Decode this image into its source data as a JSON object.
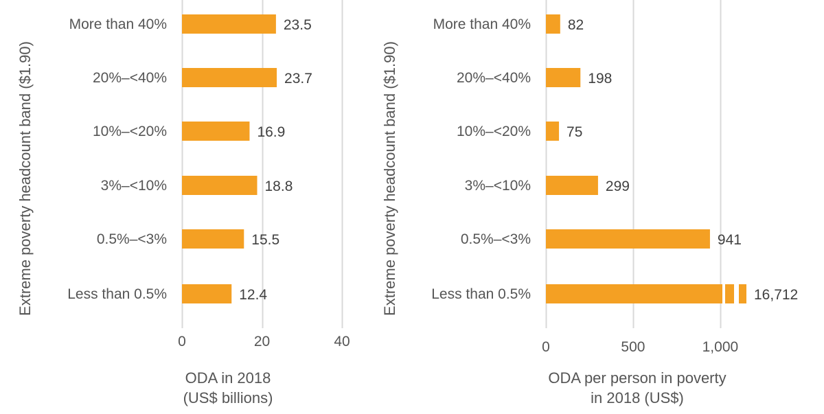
{
  "colors": {
    "bar": "#F4A023",
    "grid": "#d9d9d9",
    "text": "#555555",
    "value": "#404040"
  },
  "chart_data": [
    {
      "type": "bar",
      "orientation": "horizontal",
      "ylabel": "Extreme poverty headcount band ($1.90)",
      "xlabel_lines": [
        "ODA in 2018",
        "(US$ billions)"
      ],
      "categories": [
        "More than 40%",
        "20%–<40%",
        "10%–<20%",
        "3%–<10%",
        "0.5%–<3%",
        "Less than 0.5%"
      ],
      "values": [
        23.5,
        23.7,
        16.9,
        18.8,
        15.5,
        12.4
      ],
      "value_labels": [
        "23.5",
        "23.7",
        "16.9",
        "18.8",
        "15.5",
        "12.4"
      ],
      "xlim": [
        0,
        40
      ],
      "xticks": [
        0,
        20,
        40
      ],
      "xtick_labels": [
        "0",
        "20",
        "40"
      ],
      "grid": true
    },
    {
      "type": "bar",
      "orientation": "horizontal",
      "axis_break": true,
      "ylabel": "Extreme poverty headcount band ($1.90)",
      "xlabel_lines": [
        "ODA per person in poverty",
        "in 2018 (US$)"
      ],
      "categories": [
        "More than 40%",
        "20%–<40%",
        "10%–<20%",
        "3%–<10%",
        "0.5%–<3%",
        "Less than 0.5%"
      ],
      "values": [
        82,
        198,
        75,
        299,
        941,
        16712
      ],
      "value_labels": [
        "82",
        "198",
        "75",
        "299",
        "941",
        "16,712"
      ],
      "xlim": [
        0,
        1150
      ],
      "xticks": [
        0,
        500,
        1000
      ],
      "xtick_labels": [
        "0",
        "500",
        "1,000"
      ],
      "grid": true
    }
  ]
}
